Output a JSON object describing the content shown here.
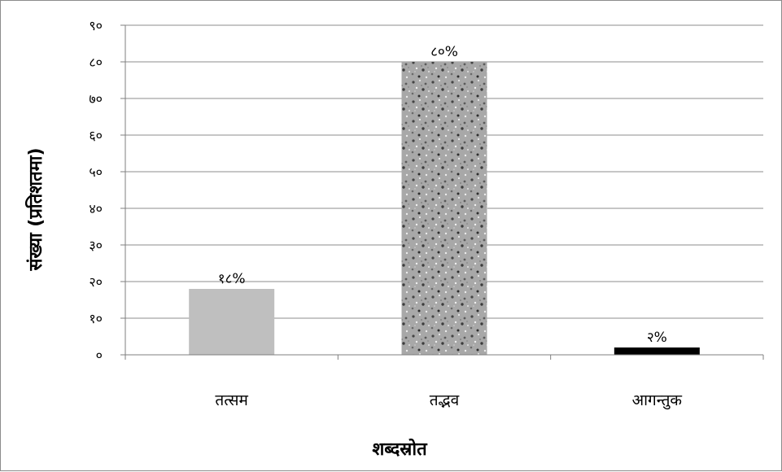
{
  "chart_data": {
    "type": "bar",
    "categories": [
      "तत्सम",
      "तद्भव",
      "आगन्तुक"
    ],
    "values": [
      18,
      80,
      2
    ],
    "data_labels": [
      "१८%",
      "८०%",
      "२%"
    ],
    "xlabel": "शब्दस्रोत",
    "ylabel": "संख्या (प्रतिशतमा)",
    "ylim": [
      0,
      90
    ],
    "yticks": [
      0,
      10,
      20,
      30,
      40,
      50,
      60,
      70,
      80,
      90
    ],
    "ytick_labels": [
      "०",
      "१०",
      "२०",
      "३०",
      "४०",
      "५०",
      "६०",
      "७०",
      "८०",
      "९०"
    ],
    "grid": true,
    "legend": "none",
    "colors": [
      "#bfbfbf",
      "#9a9a9a",
      "#000000"
    ],
    "bar_fills": [
      "solid-light-gray",
      "speckled-granite",
      "solid-black"
    ]
  }
}
